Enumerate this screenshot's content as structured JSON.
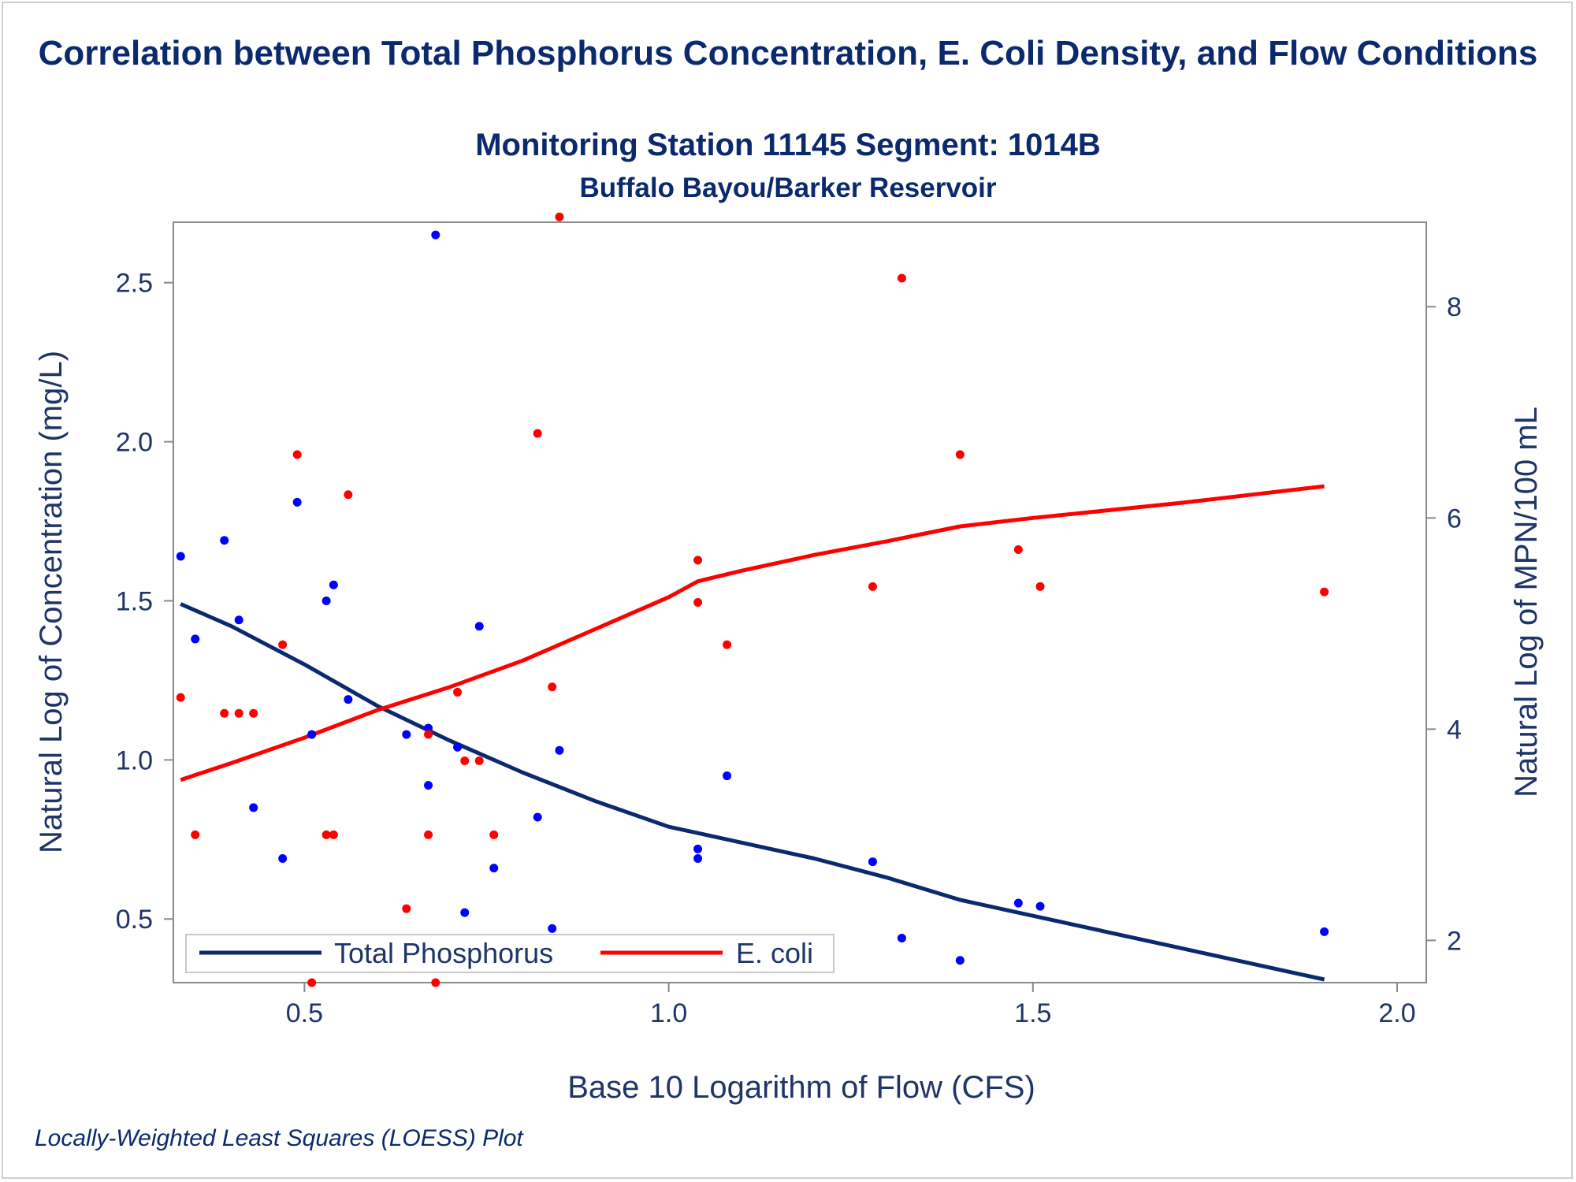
{
  "chart_data": {
    "type": "scatter",
    "title": "Correlation between Total Phosphorus Concentration, E. Coli Density, and Flow Conditions",
    "subtitle": "Monitoring Station 11145 Segment: 1014B",
    "subtitle2": "Buffalo Bayou/Barker Reservoir",
    "footnote": "Locally-Weighted Least Squares (LOESS) Plot",
    "xlabel": "Base 10 Logarithm of Flow (CFS)",
    "ylabel_left": "Natural Log of Concentration (mg/L)",
    "ylabel_right": "Natural Log of MPN/100 mL",
    "xlim": [
      0.32,
      2.04
    ],
    "ylim_left": [
      0.3,
      2.69
    ],
    "ylim_right": [
      1.6,
      8.8
    ],
    "x_ticks": [
      0.5,
      1.0,
      1.5,
      2.0
    ],
    "x_tick_labels": [
      "0.5",
      "1.0",
      "1.5",
      "2.0"
    ],
    "yleft_ticks": [
      0.5,
      1.0,
      1.5,
      2.0,
      2.5
    ],
    "yleft_tick_labels": [
      "0.5",
      "1.0",
      "1.5",
      "2.0",
      "2.5"
    ],
    "yright_ticks": [
      2,
      4,
      6,
      8
    ],
    "yright_tick_labels": [
      "2",
      "4",
      "6",
      "8"
    ],
    "grid": false,
    "legend_position": "bottom-left",
    "series": [
      {
        "name": "Total Phosphorus",
        "axis": "left",
        "color": "#0000ff",
        "line_color": "#0b2a6e",
        "points": [
          [
            0.33,
            1.64
          ],
          [
            0.35,
            1.38
          ],
          [
            0.39,
            1.69
          ],
          [
            0.41,
            1.44
          ],
          [
            0.43,
            0.85
          ],
          [
            0.47,
            0.69
          ],
          [
            0.49,
            1.81
          ],
          [
            0.51,
            1.08
          ],
          [
            0.53,
            1.5
          ],
          [
            0.54,
            1.55
          ],
          [
            0.56,
            1.19
          ],
          [
            0.64,
            1.08
          ],
          [
            0.67,
            1.1
          ],
          [
            0.67,
            0.92
          ],
          [
            0.68,
            2.65
          ],
          [
            0.71,
            1.04
          ],
          [
            0.72,
            0.52
          ],
          [
            0.74,
            1.42
          ],
          [
            0.76,
            0.66
          ],
          [
            0.82,
            0.82
          ],
          [
            0.84,
            0.47
          ],
          [
            0.85,
            1.03
          ],
          [
            1.04,
            0.72
          ],
          [
            1.04,
            0.69
          ],
          [
            1.08,
            0.95
          ],
          [
            1.28,
            0.68
          ],
          [
            1.32,
            0.44
          ],
          [
            1.4,
            0.37
          ],
          [
            1.48,
            0.55
          ],
          [
            1.51,
            0.54
          ],
          [
            1.9,
            0.46
          ]
        ],
        "loess": [
          [
            0.33,
            1.49
          ],
          [
            0.4,
            1.42
          ],
          [
            0.5,
            1.3
          ],
          [
            0.6,
            1.17
          ],
          [
            0.7,
            1.06
          ],
          [
            0.8,
            0.96
          ],
          [
            0.9,
            0.87
          ],
          [
            1.0,
            0.79
          ],
          [
            1.04,
            0.77
          ],
          [
            1.1,
            0.74
          ],
          [
            1.2,
            0.69
          ],
          [
            1.3,
            0.63
          ],
          [
            1.4,
            0.56
          ],
          [
            1.5,
            0.51
          ],
          [
            1.6,
            0.46
          ],
          [
            1.7,
            0.41
          ],
          [
            1.8,
            0.36
          ],
          [
            1.9,
            0.31
          ]
        ]
      },
      {
        "name": "E. coli",
        "axis": "right",
        "color": "#ff0000",
        "line_color": "#ff0000",
        "points": [
          [
            0.33,
            4.3
          ],
          [
            0.35,
            3.0
          ],
          [
            0.39,
            4.15
          ],
          [
            0.41,
            4.15
          ],
          [
            0.43,
            4.15
          ],
          [
            0.47,
            4.8
          ],
          [
            0.49,
            6.6
          ],
          [
            0.51,
            1.6
          ],
          [
            0.53,
            3.0
          ],
          [
            0.54,
            3.0
          ],
          [
            0.56,
            6.22
          ],
          [
            0.64,
            2.3
          ],
          [
            0.67,
            3.95
          ],
          [
            0.67,
            3.0
          ],
          [
            0.68,
            1.6
          ],
          [
            0.71,
            4.35
          ],
          [
            0.72,
            3.7
          ],
          [
            0.74,
            3.7
          ],
          [
            0.76,
            3.0
          ],
          [
            0.82,
            6.8
          ],
          [
            0.84,
            4.4
          ],
          [
            0.85,
            8.85
          ],
          [
            1.04,
            5.6
          ],
          [
            1.04,
            5.2
          ],
          [
            1.08,
            4.8
          ],
          [
            1.28,
            5.35
          ],
          [
            1.32,
            8.27
          ],
          [
            1.4,
            6.6
          ],
          [
            1.48,
            5.7
          ],
          [
            1.51,
            5.35
          ],
          [
            1.9,
            5.3
          ]
        ],
        "loess": [
          [
            0.33,
            3.52
          ],
          [
            0.4,
            3.68
          ],
          [
            0.5,
            3.92
          ],
          [
            0.6,
            4.18
          ],
          [
            0.7,
            4.4
          ],
          [
            0.8,
            4.65
          ],
          [
            0.9,
            4.95
          ],
          [
            1.0,
            5.25
          ],
          [
            1.04,
            5.4
          ],
          [
            1.1,
            5.5
          ],
          [
            1.2,
            5.65
          ],
          [
            1.3,
            5.78
          ],
          [
            1.4,
            5.92
          ],
          [
            1.5,
            6.0
          ],
          [
            1.6,
            6.07
          ],
          [
            1.7,
            6.14
          ],
          [
            1.8,
            6.22
          ],
          [
            1.9,
            6.3
          ]
        ]
      }
    ]
  }
}
